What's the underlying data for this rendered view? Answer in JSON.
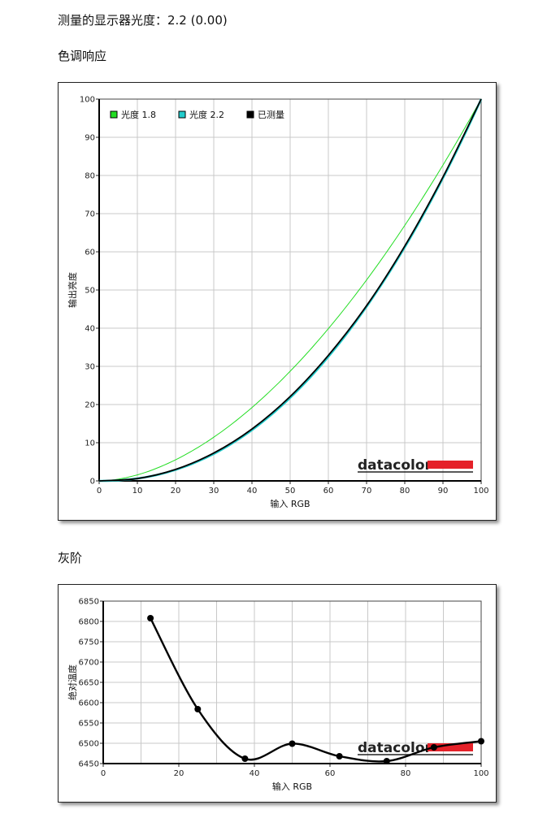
{
  "page": {
    "gamma_heading": "测量的显示器光度：2.2 (0.00)",
    "tone_heading": "色调响应",
    "gray_heading": "灰阶"
  },
  "logo": {
    "text": "datacolor",
    "color": "#e52129"
  },
  "chart_data": [
    {
      "type": "line",
      "xlabel": "输入 RGB",
      "ylabel": "输出亮度",
      "xlim": [
        0,
        100
      ],
      "ylim": [
        0,
        100
      ],
      "grid": true,
      "legend_position": "top-left",
      "x_ticks": [
        "0",
        "10",
        "20",
        "30",
        "40",
        "50",
        "60",
        "70",
        "80",
        "90",
        "100"
      ],
      "y_ticks": [
        "0",
        "10",
        "20",
        "30",
        "40",
        "50",
        "60",
        "70",
        "80",
        "90",
        "100"
      ],
      "series": [
        {
          "name": "光度 1.8",
          "color": "#22dd22",
          "gamma": 1.8,
          "x": [
            0,
            10,
            20,
            30,
            40,
            50,
            60,
            70,
            80,
            90,
            100
          ],
          "y": [
            0,
            1.6,
            5.5,
            11.5,
            19.2,
            28.7,
            39.9,
            52.6,
            66.9,
            82.7,
            100
          ]
        },
        {
          "name": "光度 2.2",
          "color": "#22cccc",
          "gamma": 2.2,
          "x": [
            0,
            10,
            20,
            30,
            40,
            50,
            60,
            70,
            80,
            90,
            100
          ],
          "y": [
            0,
            0.6,
            2.9,
            7.1,
            13.3,
            21.8,
            32.5,
            45.6,
            61.2,
            79.3,
            100
          ]
        },
        {
          "name": "已测量",
          "color": "#000000",
          "x": [
            0,
            10,
            20,
            30,
            40,
            50,
            60,
            70,
            80,
            90,
            100
          ],
          "y": [
            0,
            0.6,
            3.0,
            7.3,
            13.6,
            22.1,
            32.9,
            45.9,
            61.5,
            79.6,
            100
          ]
        }
      ]
    },
    {
      "type": "line",
      "xlabel": "输入 RGB",
      "ylabel": "绝对温度",
      "xlim": [
        0,
        100
      ],
      "ylim": [
        6450,
        6850
      ],
      "grid": true,
      "x_ticks": [
        "0",
        "20",
        "40",
        "60",
        "80",
        "100"
      ],
      "y_ticks": [
        "6450",
        "6500",
        "6550",
        "6600",
        "6650",
        "6700",
        "6750",
        "6800",
        "6850"
      ],
      "series": [
        {
          "color": "#000000",
          "smooth": true,
          "x": [
            12.5,
            25,
            37.5,
            50,
            62.5,
            75,
            87.5,
            100
          ],
          "y": [
            6808,
            6584,
            6462,
            6499,
            6468,
            6456,
            6490,
            6505
          ]
        }
      ]
    }
  ]
}
